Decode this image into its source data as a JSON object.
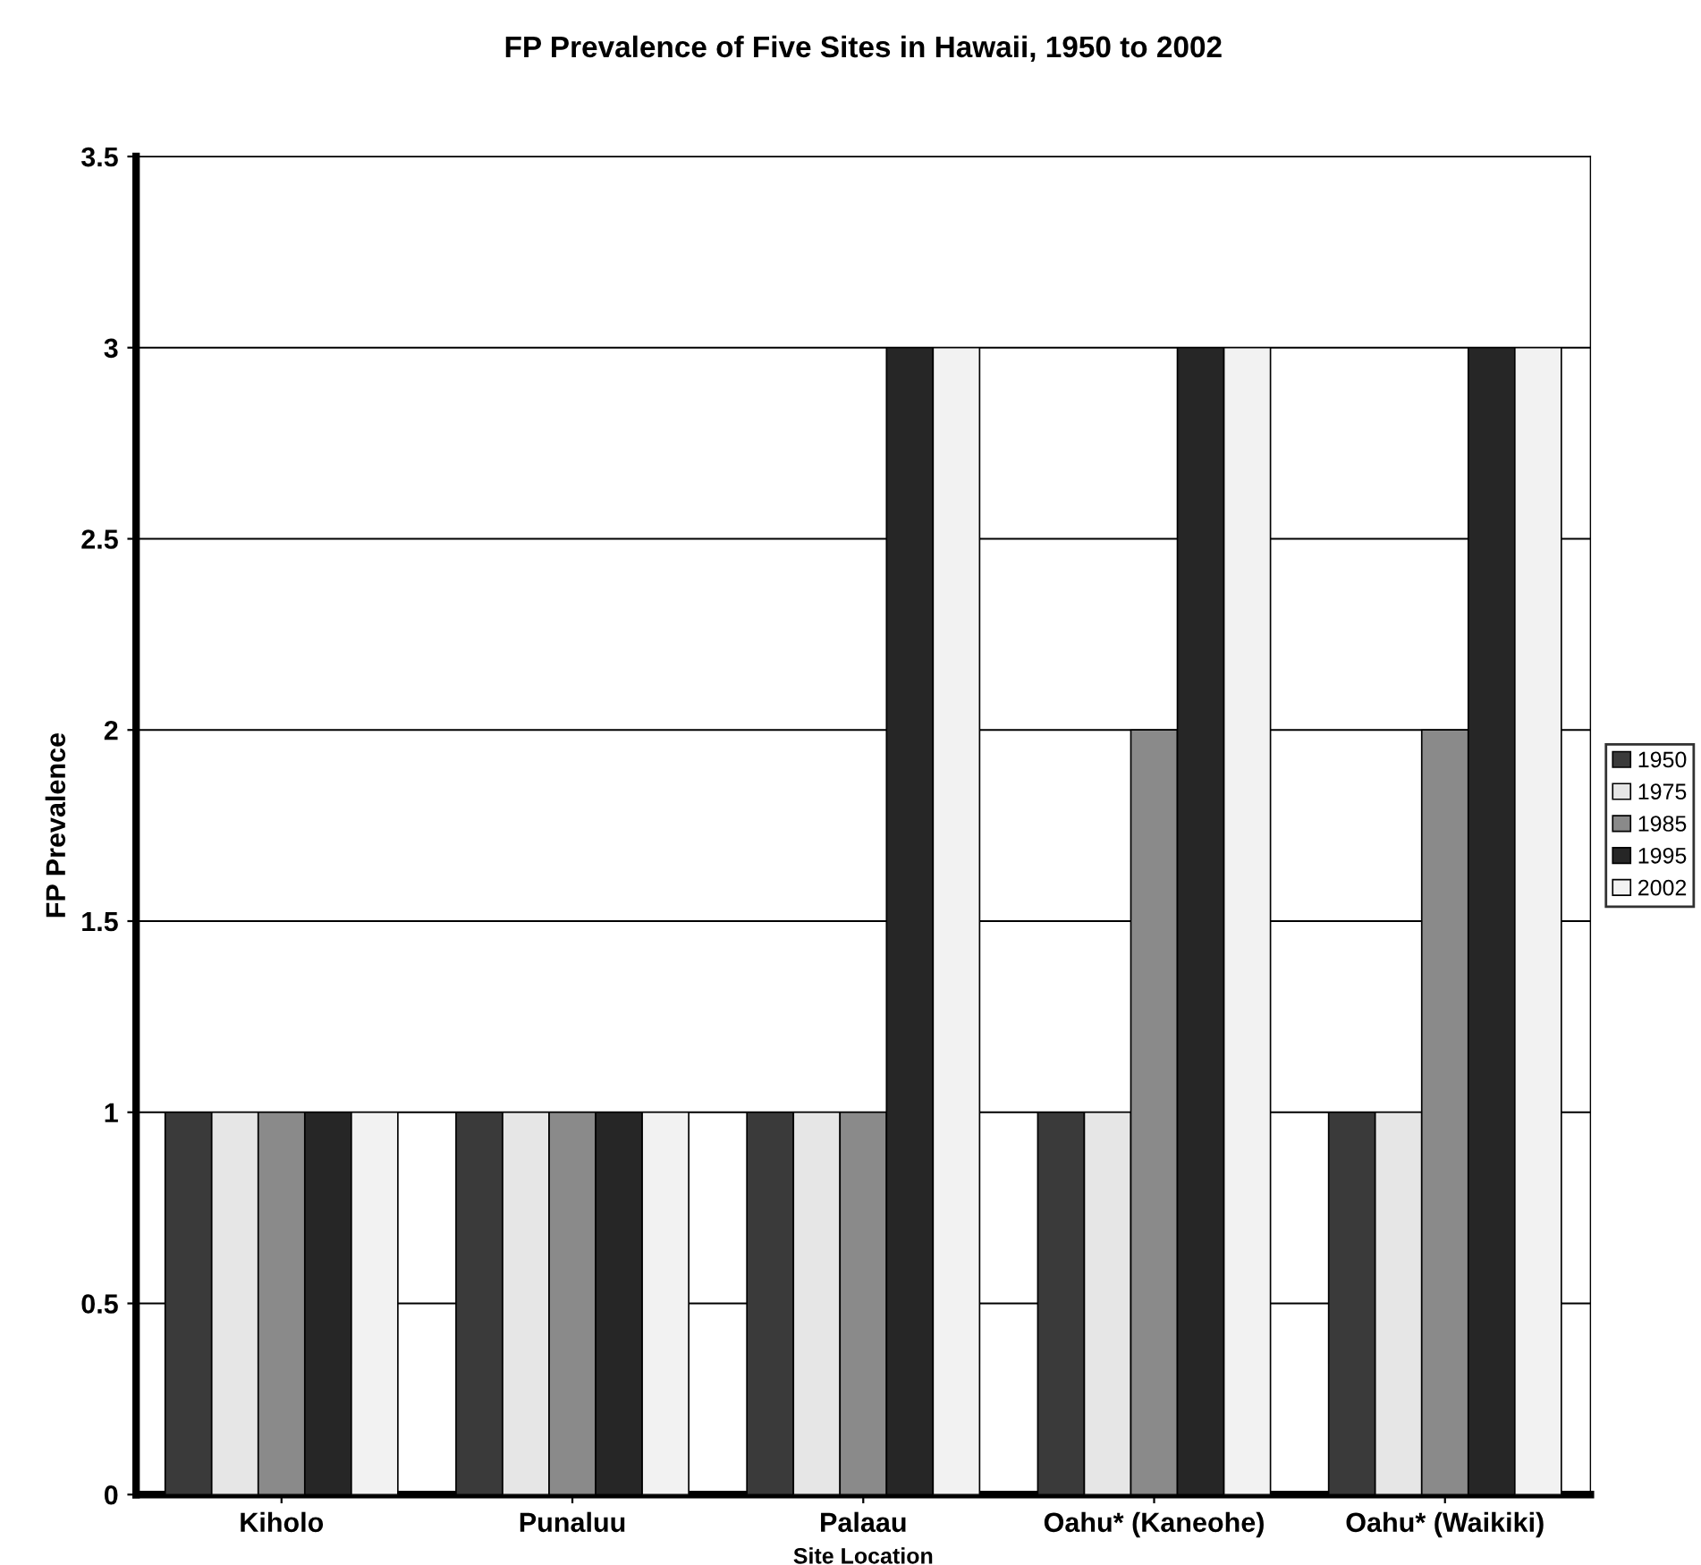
{
  "chart_data": {
    "type": "bar",
    "title": "FP Prevalence of Five Sites in Hawaii, 1950 to 2002",
    "xlabel": "Site Location",
    "ylabel": "FP Prevalence",
    "categories": [
      "Kiholo",
      "Punaluu",
      "Palaau",
      "Oahu* (Kaneohe)",
      "Oahu* (Waikiki)"
    ],
    "series": [
      {
        "name": "1950",
        "color": "#3a3a3a",
        "values": [
          1,
          1,
          1,
          1,
          1
        ]
      },
      {
        "name": "1975",
        "color": "#e6e6e6",
        "values": [
          1,
          1,
          1,
          1,
          1
        ]
      },
      {
        "name": "1985",
        "color": "#8a8a8a",
        "values": [
          1,
          1,
          1,
          2,
          2
        ]
      },
      {
        "name": "1995",
        "color": "#262626",
        "values": [
          1,
          1,
          3,
          3,
          3
        ]
      },
      {
        "name": "2002",
        "color": "#f2f2f2",
        "values": [
          1,
          1,
          3,
          3,
          3
        ]
      }
    ],
    "ylim": [
      0,
      3.5
    ],
    "yticks": [
      0,
      0.5,
      1,
      1.5,
      2,
      2.5,
      3,
      3.5
    ],
    "grid": "y",
    "legend": "right"
  }
}
